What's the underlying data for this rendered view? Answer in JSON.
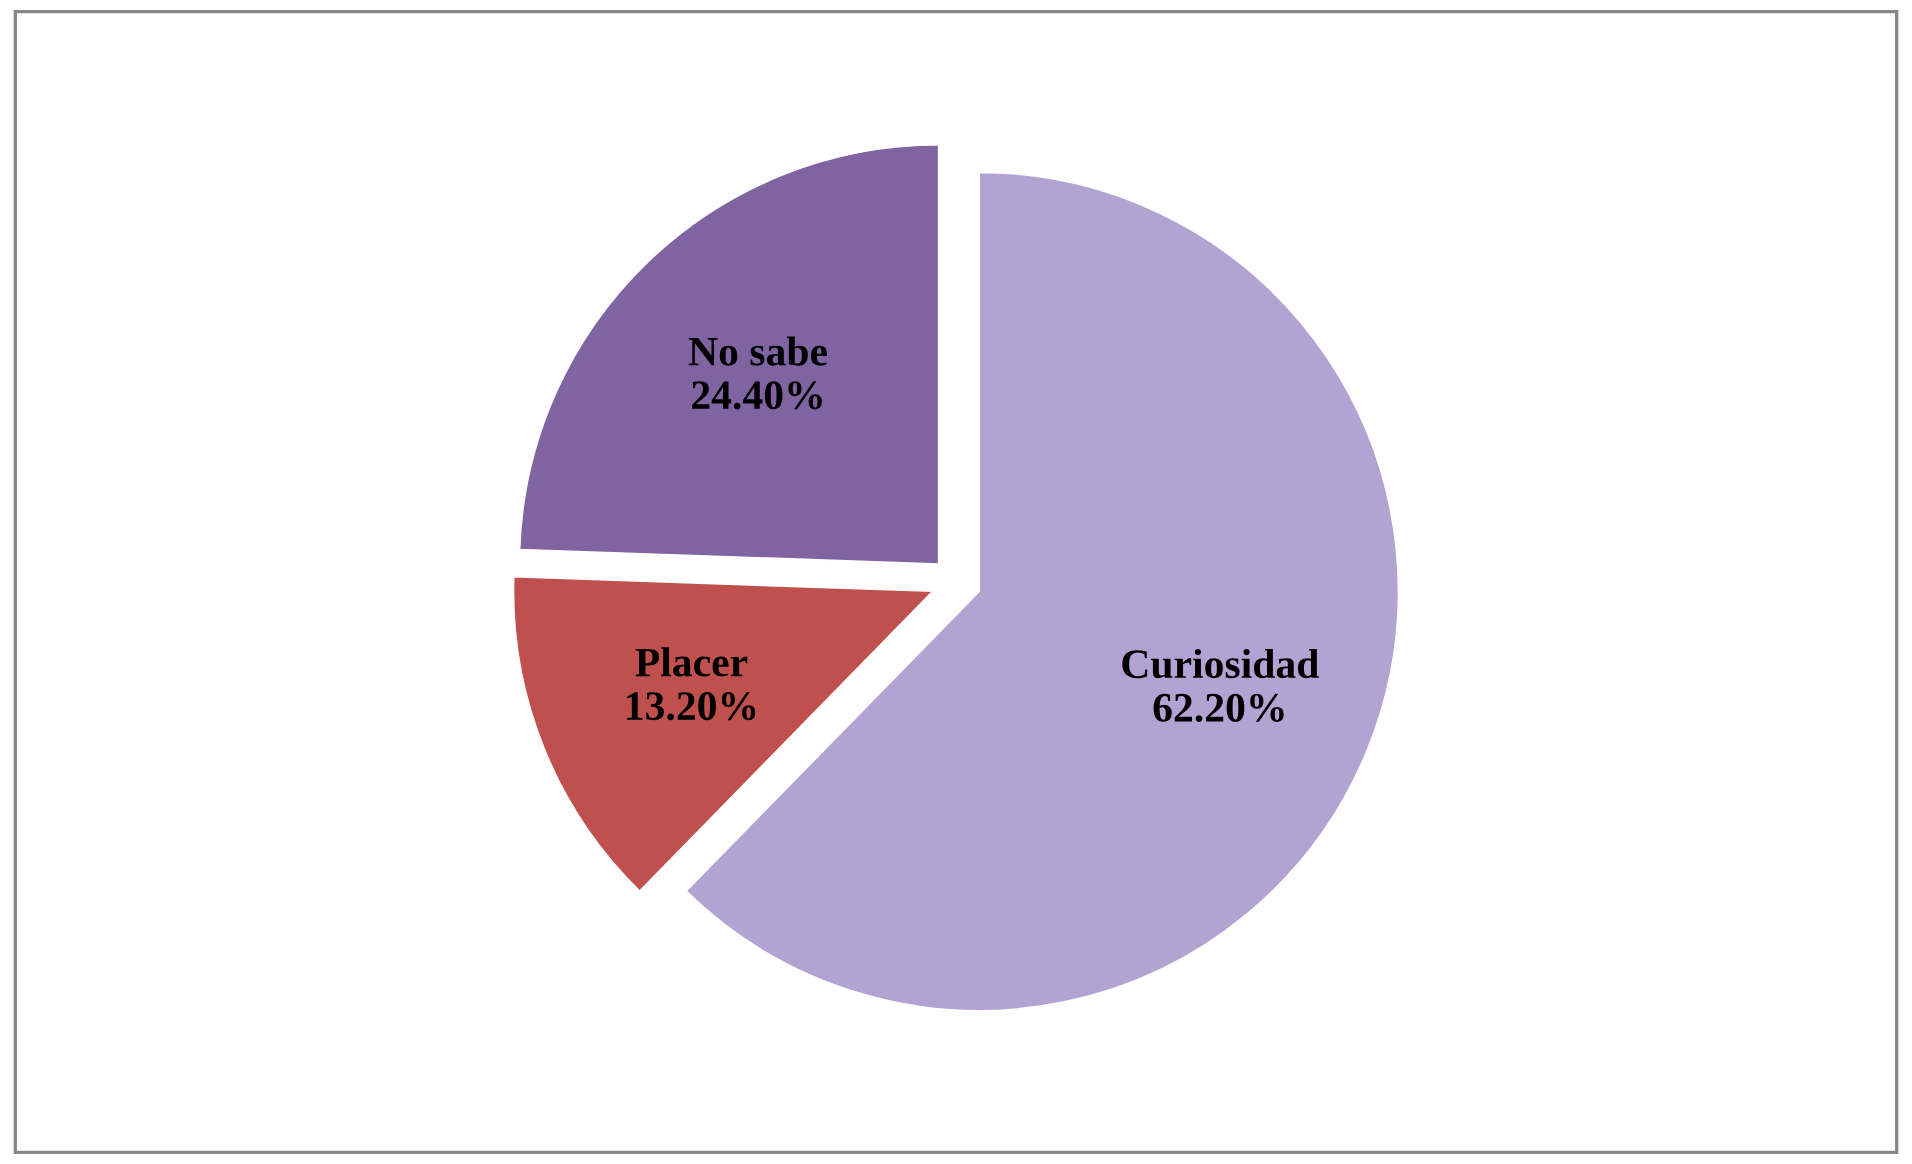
{
  "chart_data": {
    "type": "pie",
    "categories": [
      "Curiosidad",
      "Placer",
      "No sabe"
    ],
    "values": [
      62.2,
      13.2,
      24.4
    ],
    "value_labels": [
      "62.20%",
      "13.20%",
      "24.40%"
    ],
    "colors": [
      "#b3a3d3",
      "#c0504d",
      "#8064a2"
    ]
  }
}
